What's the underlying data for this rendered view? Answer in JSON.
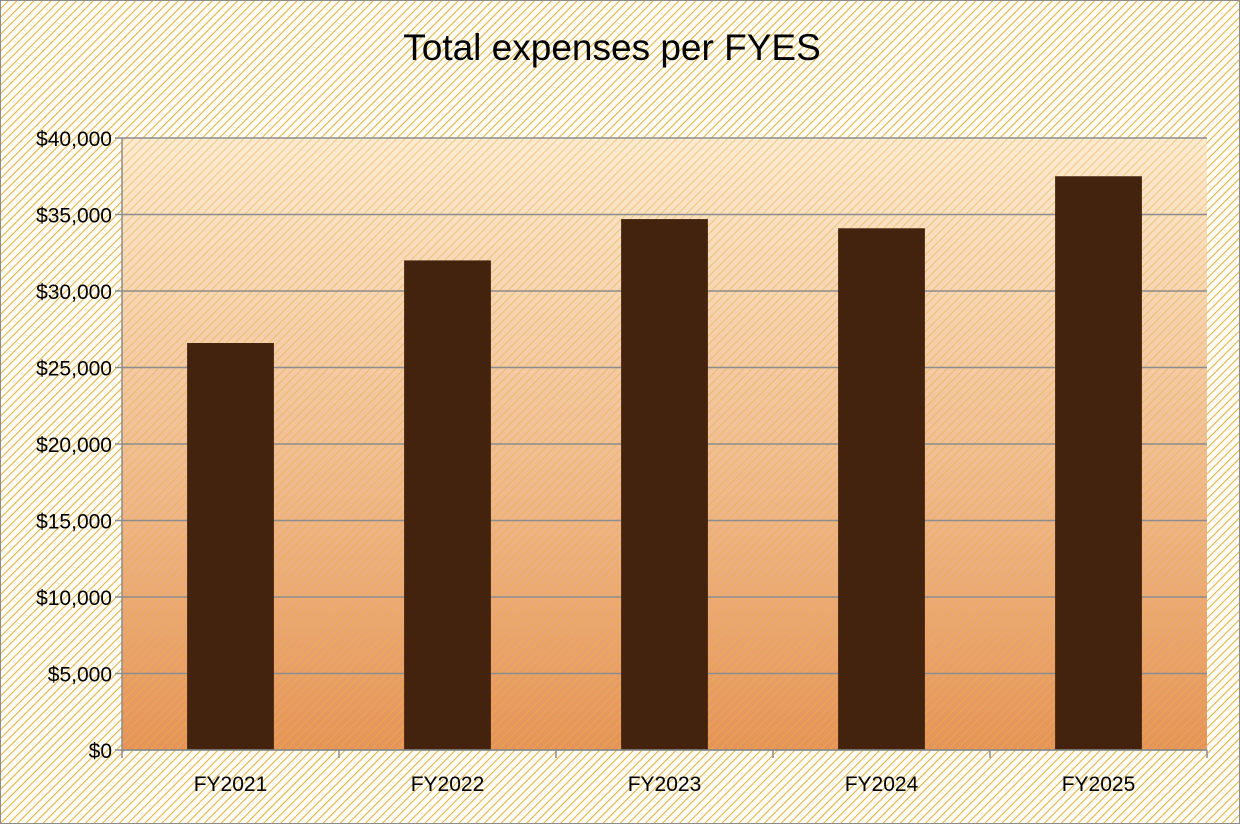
{
  "chart_data": {
    "type": "bar",
    "title": "Total expenses per FYES",
    "xlabel": "",
    "ylabel": "",
    "categories": [
      "FY2021",
      "FY2022",
      "FY2023",
      "FY2024",
      "FY2025"
    ],
    "values": [
      26600,
      32000,
      34700,
      34100,
      37500
    ],
    "ylim": [
      0,
      40000
    ],
    "yticks": [
      0,
      5000,
      10000,
      15000,
      20000,
      25000,
      30000,
      35000,
      40000
    ],
    "ytick_labels": [
      "$0",
      "$5,000",
      "$10,000",
      "$15,000",
      "$20,000",
      "$25,000",
      "$30,000",
      "$35,000",
      "$40,000"
    ],
    "grid": true,
    "legend": "none",
    "colors": {
      "bar": "#43230d",
      "gridline": "#8c8c8c",
      "hatch_line": "#e2b44a",
      "bg_light": "#fffef8",
      "plot_top": "#fdebd2",
      "plot_bottom": "#e69358",
      "frame": "#8c8c8c",
      "text": "#000000"
    }
  }
}
